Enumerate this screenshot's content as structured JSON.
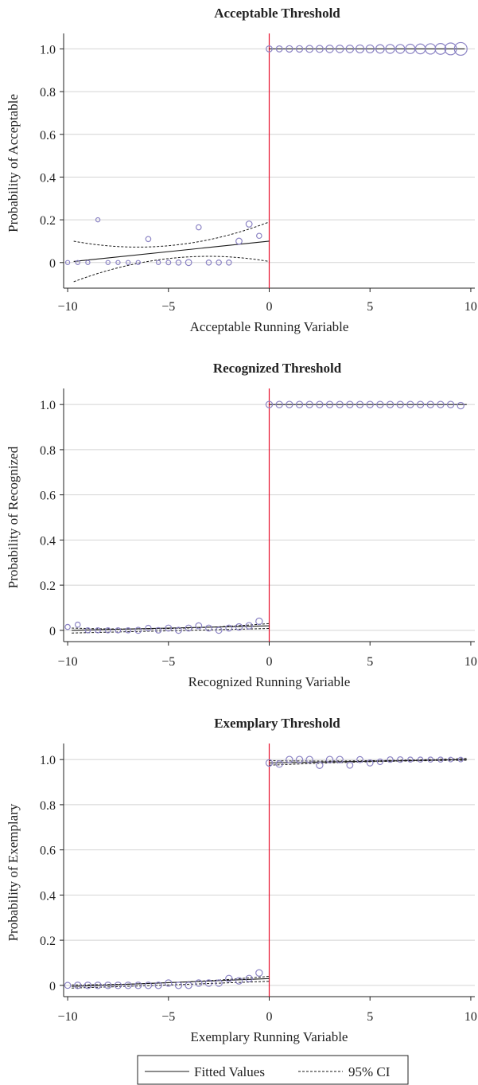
{
  "colors": {
    "grid": "#d4d4d4",
    "cutoff": "#e8112d",
    "marker": "#8b83c4",
    "fit": "#1a1a1a",
    "axis": "#222222"
  },
  "legend": {
    "fitted_label": "Fitted Values",
    "ci_label": "95% CI"
  },
  "chart_data": [
    {
      "type": "scatter",
      "title": "Acceptable Threshold",
      "xlabel": "Acceptable Running Variable",
      "ylabel": "Probability of Acceptable",
      "xlim": [
        -10.2,
        10.2
      ],
      "ylim": [
        -0.12,
        1.05
      ],
      "xticks": [
        -10,
        -5,
        0,
        5,
        10
      ],
      "xtick_labels": [
        "−10",
        "−5",
        "0",
        "5",
        "10"
      ],
      "yticks": [
        0,
        0.2,
        0.4,
        0.6,
        0.8,
        1.0
      ],
      "ytick_labels": [
        "0",
        "0.2",
        "0.4",
        "0.6",
        "0.8",
        "1.0"
      ],
      "cutoff": 0,
      "points": [
        {
          "x": -10,
          "y": 0,
          "w": 1
        },
        {
          "x": -9.5,
          "y": 0,
          "w": 1
        },
        {
          "x": -9,
          "y": 0,
          "w": 1
        },
        {
          "x": -8.5,
          "y": 0.2,
          "w": 1
        },
        {
          "x": -8,
          "y": 0,
          "w": 1
        },
        {
          "x": -7.5,
          "y": 0,
          "w": 1
        },
        {
          "x": -7,
          "y": 0,
          "w": 1
        },
        {
          "x": -6.5,
          "y": 0,
          "w": 1
        },
        {
          "x": -6,
          "y": 0.11,
          "w": 2
        },
        {
          "x": -5.5,
          "y": 0,
          "w": 1
        },
        {
          "x": -5,
          "y": 0,
          "w": 1.5
        },
        {
          "x": -4.5,
          "y": 0,
          "w": 2
        },
        {
          "x": -4,
          "y": 0,
          "w": 3
        },
        {
          "x": -3.5,
          "y": 0.165,
          "w": 2
        },
        {
          "x": -3,
          "y": 0,
          "w": 2
        },
        {
          "x": -2.5,
          "y": 0,
          "w": 2
        },
        {
          "x": -2,
          "y": 0,
          "w": 2
        },
        {
          "x": -1.5,
          "y": 0.1,
          "w": 3
        },
        {
          "x": -1,
          "y": 0.18,
          "w": 3
        },
        {
          "x": -0.5,
          "y": 0.125,
          "w": 2
        },
        {
          "x": 0,
          "y": 1,
          "w": 3
        },
        {
          "x": 0.5,
          "y": 1,
          "w": 3
        },
        {
          "x": 1,
          "y": 1,
          "w": 3.5
        },
        {
          "x": 1.5,
          "y": 1,
          "w": 3.5
        },
        {
          "x": 2,
          "y": 1,
          "w": 4
        },
        {
          "x": 2.5,
          "y": 1,
          "w": 4
        },
        {
          "x": 3,
          "y": 1,
          "w": 4.5
        },
        {
          "x": 3.5,
          "y": 1,
          "w": 4.5
        },
        {
          "x": 4,
          "y": 1,
          "w": 4.5
        },
        {
          "x": 4.5,
          "y": 1,
          "w": 5
        },
        {
          "x": 5,
          "y": 1,
          "w": 5
        },
        {
          "x": 5.5,
          "y": 1,
          "w": 5.5
        },
        {
          "x": 6,
          "y": 1,
          "w": 6
        },
        {
          "x": 6.5,
          "y": 1,
          "w": 6
        },
        {
          "x": 7,
          "y": 1,
          "w": 6.5
        },
        {
          "x": 7.5,
          "y": 1,
          "w": 7
        },
        {
          "x": 8,
          "y": 1,
          "w": 7.5
        },
        {
          "x": 8.5,
          "y": 1,
          "w": 8
        },
        {
          "x": 9,
          "y": 1,
          "w": 9
        },
        {
          "x": 9.5,
          "y": 1,
          "w": 10
        }
      ],
      "fits": [
        {
          "x": [
            -9.7,
            0
          ],
          "y": [
            0.005,
            0.1
          ],
          "ci_upper": [
            0.1,
            0.08,
            0.19
          ],
          "ci_lower": [
            -0.09,
            0.02,
            0.005
          ],
          "ci_x": [
            -9.7,
            -4.85,
            0
          ]
        },
        {
          "x": [
            0,
            9.7
          ],
          "y": [
            1,
            1
          ]
        }
      ]
    },
    {
      "type": "scatter",
      "title": "Recognized Threshold",
      "xlabel": "Recognized Running Variable",
      "ylabel": "Probability of Recognized",
      "xlim": [
        -10.2,
        10.2
      ],
      "ylim": [
        -0.05,
        1.05
      ],
      "xticks": [
        -10,
        -5,
        0,
        5,
        10
      ],
      "xtick_labels": [
        "−10",
        "−5",
        "0",
        "5",
        "10"
      ],
      "yticks": [
        0,
        0.2,
        0.4,
        0.6,
        0.8,
        1.0
      ],
      "ytick_labels": [
        "0",
        "0.2",
        "0.4",
        "0.6",
        "0.8",
        "1.0"
      ],
      "cutoff": 0,
      "points": [
        {
          "x": -10,
          "y": 0.015,
          "w": 2
        },
        {
          "x": -9.5,
          "y": 0.025,
          "w": 2
        },
        {
          "x": -9,
          "y": 0,
          "w": 2
        },
        {
          "x": -8.5,
          "y": 0,
          "w": 2
        },
        {
          "x": -8,
          "y": 0,
          "w": 2
        },
        {
          "x": -7.5,
          "y": 0,
          "w": 2
        },
        {
          "x": -7,
          "y": 0,
          "w": 2
        },
        {
          "x": -6.5,
          "y": 0,
          "w": 3
        },
        {
          "x": -6,
          "y": 0.01,
          "w": 2.5
        },
        {
          "x": -5.5,
          "y": 0,
          "w": 2.5
        },
        {
          "x": -5,
          "y": 0.01,
          "w": 3
        },
        {
          "x": -4.5,
          "y": 0,
          "w": 3
        },
        {
          "x": -4,
          "y": 0.01,
          "w": 3
        },
        {
          "x": -3.5,
          "y": 0.02,
          "w": 3
        },
        {
          "x": -3,
          "y": 0.01,
          "w": 3
        },
        {
          "x": -2.5,
          "y": 0,
          "w": 3
        },
        {
          "x": -2,
          "y": 0.01,
          "w": 3
        },
        {
          "x": -1.5,
          "y": 0.015,
          "w": 3.5
        },
        {
          "x": -1,
          "y": 0.02,
          "w": 3.5
        },
        {
          "x": -0.5,
          "y": 0.04,
          "w": 3.5
        },
        {
          "x": 0,
          "y": 1,
          "w": 3.5
        },
        {
          "x": 0.5,
          "y": 1,
          "w": 3.5
        },
        {
          "x": 1,
          "y": 1,
          "w": 3.5
        },
        {
          "x": 1.5,
          "y": 1,
          "w": 3.5
        },
        {
          "x": 2,
          "y": 1,
          "w": 3.5
        },
        {
          "x": 2.5,
          "y": 1,
          "w": 3.5
        },
        {
          "x": 3,
          "y": 1,
          "w": 3.5
        },
        {
          "x": 3.5,
          "y": 1,
          "w": 3.5
        },
        {
          "x": 4,
          "y": 1,
          "w": 3.5
        },
        {
          "x": 4.5,
          "y": 1,
          "w": 3.5
        },
        {
          "x": 5,
          "y": 1,
          "w": 3.5
        },
        {
          "x": 5.5,
          "y": 1,
          "w": 3.5
        },
        {
          "x": 6,
          "y": 1,
          "w": 3.5
        },
        {
          "x": 6.5,
          "y": 1,
          "w": 3.5
        },
        {
          "x": 7,
          "y": 1,
          "w": 3.5
        },
        {
          "x": 7.5,
          "y": 1,
          "w": 3.5
        },
        {
          "x": 8,
          "y": 1,
          "w": 3.5
        },
        {
          "x": 8.5,
          "y": 1,
          "w": 3.5
        },
        {
          "x": 9,
          "y": 1,
          "w": 3.5
        },
        {
          "x": 9.5,
          "y": 0.995,
          "w": 3.5
        }
      ],
      "fits": [
        {
          "x": [
            -9.8,
            0
          ],
          "y": [
            0,
            0.02
          ],
          "ci_upper": [
            0.01,
            0.008,
            0.03
          ],
          "ci_lower": [
            -0.012,
            -0.002,
            0.008
          ],
          "ci_x": [
            -9.8,
            -4.9,
            0
          ]
        },
        {
          "x": [
            0,
            9.8
          ],
          "y": [
            1,
            1
          ]
        }
      ]
    },
    {
      "type": "scatter",
      "title": "Exemplary Threshold",
      "xlabel": "Exemplary Running Variable",
      "ylabel": "Probability of Exemplary",
      "xlim": [
        -10.2,
        10.2
      ],
      "ylim": [
        -0.05,
        1.05
      ],
      "xticks": [
        -10,
        -5,
        0,
        5,
        10
      ],
      "xtick_labels": [
        "−10",
        "−5",
        "0",
        "5",
        "10"
      ],
      "yticks": [
        0,
        0.2,
        0.4,
        0.6,
        0.8,
        1.0
      ],
      "ytick_labels": [
        "0",
        "0.2",
        "0.4",
        "0.6",
        "0.8",
        "1.0"
      ],
      "cutoff": 0,
      "points": [
        {
          "x": -10,
          "y": 0,
          "w": 3
        },
        {
          "x": -9.5,
          "y": 0,
          "w": 3.5
        },
        {
          "x": -9,
          "y": 0,
          "w": 3.5
        },
        {
          "x": -8.5,
          "y": 0,
          "w": 3.5
        },
        {
          "x": -8,
          "y": 0,
          "w": 3.5
        },
        {
          "x": -7.5,
          "y": 0,
          "w": 3.5
        },
        {
          "x": -7,
          "y": 0,
          "w": 3.5
        },
        {
          "x": -6.5,
          "y": 0,
          "w": 3.5
        },
        {
          "x": -6,
          "y": 0,
          "w": 3.5
        },
        {
          "x": -5.5,
          "y": 0,
          "w": 3.5
        },
        {
          "x": -5,
          "y": 0.01,
          "w": 3.5
        },
        {
          "x": -4.5,
          "y": 0,
          "w": 3.5
        },
        {
          "x": -4,
          "y": 0,
          "w": 3.5
        },
        {
          "x": -3.5,
          "y": 0.01,
          "w": 3.5
        },
        {
          "x": -3,
          "y": 0.01,
          "w": 3.5
        },
        {
          "x": -2.5,
          "y": 0.01,
          "w": 3.5
        },
        {
          "x": -2,
          "y": 0.03,
          "w": 3.5
        },
        {
          "x": -1.5,
          "y": 0.02,
          "w": 3.5
        },
        {
          "x": -1,
          "y": 0.03,
          "w": 3.5
        },
        {
          "x": -0.5,
          "y": 0.055,
          "w": 3.5
        },
        {
          "x": 0,
          "y": 0.985,
          "w": 3.5
        },
        {
          "x": 0.5,
          "y": 0.98,
          "w": 3.5
        },
        {
          "x": 1,
          "y": 1,
          "w": 3.5
        },
        {
          "x": 1.5,
          "y": 1,
          "w": 3.5
        },
        {
          "x": 2,
          "y": 1,
          "w": 3.5
        },
        {
          "x": 2.5,
          "y": 0.975,
          "w": 3.5
        },
        {
          "x": 3,
          "y": 1,
          "w": 3.5
        },
        {
          "x": 3.5,
          "y": 1,
          "w": 3.5
        },
        {
          "x": 4,
          "y": 0.975,
          "w": 3
        },
        {
          "x": 4.5,
          "y": 1,
          "w": 3
        },
        {
          "x": 5,
          "y": 0.985,
          "w": 3
        },
        {
          "x": 5.5,
          "y": 0.99,
          "w": 2.5
        },
        {
          "x": 6,
          "y": 1,
          "w": 2.5
        },
        {
          "x": 6.5,
          "y": 1,
          "w": 2.5
        },
        {
          "x": 7,
          "y": 1,
          "w": 2
        },
        {
          "x": 7.5,
          "y": 1,
          "w": 2
        },
        {
          "x": 8,
          "y": 1,
          "w": 2
        },
        {
          "x": 8.5,
          "y": 1,
          "w": 2
        },
        {
          "x": 9,
          "y": 1,
          "w": 1.5
        },
        {
          "x": 9.5,
          "y": 1,
          "w": 1.5
        }
      ],
      "fits": [
        {
          "x": [
            -9.8,
            0
          ],
          "y": [
            -0.005,
            0.03
          ],
          "ci_upper": [
            0.002,
            0.012,
            0.04
          ],
          "ci_lower": [
            -0.012,
            0.002,
            0.018
          ],
          "ci_x": [
            -9.8,
            -4.9,
            0
          ]
        },
        {
          "x": [
            0,
            9.8
          ],
          "y": [
            0.985,
            1
          ],
          "ci_upper": [
            0.995,
            0.995,
            1.005
          ],
          "ci_lower": [
            0.975,
            0.99,
            0.997
          ],
          "ci_x": [
            0,
            4.9,
            9.8
          ]
        }
      ]
    }
  ]
}
